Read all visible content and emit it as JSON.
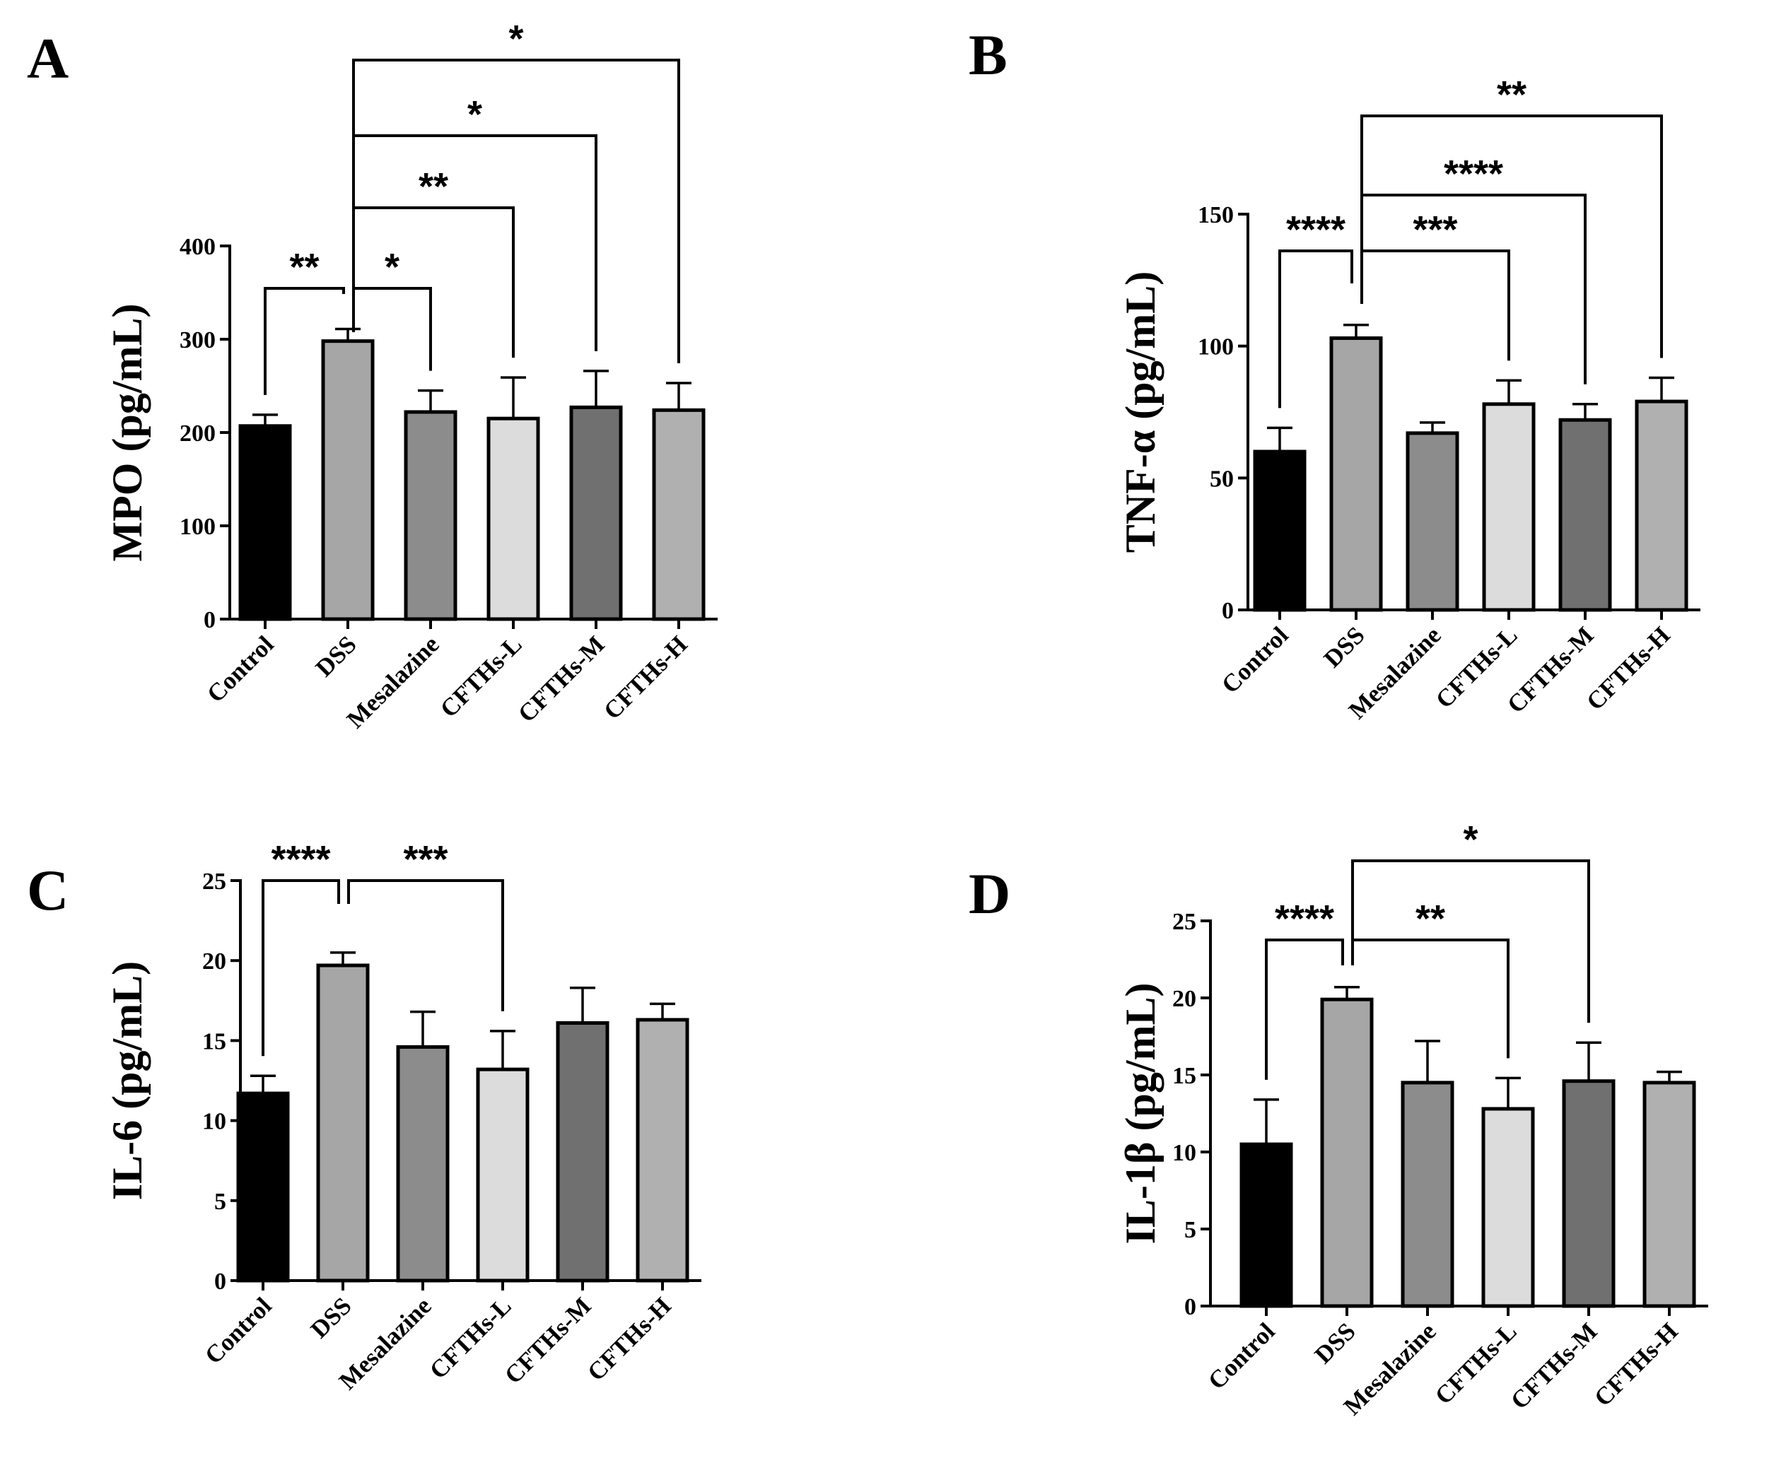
{
  "chart_data": [
    {
      "type": "bar",
      "panel": "A",
      "ylabel": "MPO (pg/mL)",
      "ylim": [
        0,
        400
      ],
      "yticks": [
        "0",
        "100",
        "200",
        "300",
        "400"
      ],
      "categories": [
        "Control",
        "DSS",
        "Mesalazine",
        "CFTHs-L",
        "CFTHs-M",
        "CFTHs-H"
      ],
      "values": [
        207,
        298,
        222,
        215,
        227,
        224
      ],
      "errors": [
        12,
        13,
        23,
        44,
        39,
        29
      ],
      "colors": [
        "#000000",
        "#a6a6a6",
        "#8c8c8c",
        "#dcdcdc",
        "#707070",
        "#b0b0b0"
      ],
      "comparisons": [
        {
          "from": "Control",
          "to": "DSS",
          "label": "**"
        },
        {
          "from": "DSS",
          "to": "Mesalazine",
          "label": "*"
        },
        {
          "from": "DSS",
          "to": "CFTHs-L",
          "label": "**"
        },
        {
          "from": "DSS",
          "to": "CFTHs-M",
          "label": "*"
        },
        {
          "from": "DSS",
          "to": "CFTHs-H",
          "label": "*"
        }
      ]
    },
    {
      "type": "bar",
      "panel": "B",
      "ylabel": "TNF-α (pg/mL)",
      "ylim": [
        0,
        150
      ],
      "yticks": [
        "0",
        "50",
        "100",
        "150"
      ],
      "categories": [
        "Control",
        "DSS",
        "Mesalazine",
        "CFTHs-L",
        "CFTHs-M",
        "CFTHs-H"
      ],
      "values": [
        60,
        103,
        67,
        78,
        72,
        79
      ],
      "errors": [
        9,
        5,
        4,
        9,
        6,
        9
      ],
      "colors": [
        "#000000",
        "#a6a6a6",
        "#8c8c8c",
        "#dcdcdc",
        "#707070",
        "#b0b0b0"
      ],
      "comparisons": [
        {
          "from": "Control",
          "to": "DSS",
          "label": "****"
        },
        {
          "from": "DSS",
          "to": "CFTHs-L",
          "label": "***"
        },
        {
          "from": "DSS",
          "to": "CFTHs-M",
          "label": "****"
        },
        {
          "from": "DSS",
          "to": "CFTHs-H",
          "label": "**"
        }
      ]
    },
    {
      "type": "bar",
      "panel": "C",
      "ylabel": "IL-6 (pg/mL)",
      "ylim": [
        0,
        25
      ],
      "yticks": [
        "0",
        "5",
        "10",
        "15",
        "20",
        "25"
      ],
      "categories": [
        "Control",
        "DSS",
        "Mesalazine",
        "CFTHs-L",
        "CFTHs-M",
        "CFTHs-H"
      ],
      "values": [
        11.7,
        19.7,
        14.6,
        13.2,
        16.1,
        16.3
      ],
      "errors": [
        1.1,
        0.8,
        2.2,
        2.4,
        2.2,
        1.0
      ],
      "colors": [
        "#000000",
        "#a6a6a6",
        "#8c8c8c",
        "#dcdcdc",
        "#707070",
        "#b0b0b0"
      ],
      "comparisons": [
        {
          "from": "Control",
          "to": "DSS",
          "label": "****"
        },
        {
          "from": "DSS",
          "to": "CFTHs-L",
          "label": "***"
        }
      ]
    },
    {
      "type": "bar",
      "panel": "D",
      "ylabel": "IL-1β (pg/mL)",
      "ylim": [
        0,
        25
      ],
      "yticks": [
        "0",
        "5",
        "10",
        "15",
        "20",
        "25"
      ],
      "categories": [
        "Control",
        "DSS",
        "Mesalazine",
        "CFTHs-L",
        "CFTHs-M",
        "CFTHs-H"
      ],
      "values": [
        10.5,
        19.9,
        14.5,
        12.8,
        14.6,
        14.5
      ],
      "errors": [
        2.9,
        0.8,
        2.7,
        2.0,
        2.5,
        0.7
      ],
      "colors": [
        "#000000",
        "#a6a6a6",
        "#8c8c8c",
        "#dcdcdc",
        "#707070",
        "#b0b0b0"
      ],
      "comparisons": [
        {
          "from": "Control",
          "to": "DSS",
          "label": "****"
        },
        {
          "from": "DSS",
          "to": "CFTHs-L",
          "label": "**"
        },
        {
          "from": "DSS",
          "to": "CFTHs-M",
          "label": "*"
        }
      ]
    }
  ]
}
